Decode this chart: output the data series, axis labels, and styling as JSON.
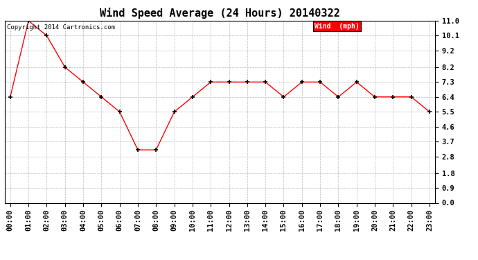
{
  "title": "Wind Speed Average (24 Hours) 20140322",
  "copyright_text": "Copyright 2014 Cartronics.com",
  "legend_label": "Wind  (mph)",
  "x_labels": [
    "00:00",
    "01:00",
    "02:00",
    "03:00",
    "04:00",
    "05:00",
    "06:00",
    "07:00",
    "08:00",
    "09:00",
    "10:00",
    "11:00",
    "12:00",
    "13:00",
    "14:00",
    "15:00",
    "16:00",
    "17:00",
    "18:00",
    "19:00",
    "20:00",
    "21:00",
    "22:00",
    "23:00"
  ],
  "wind_values": [
    6.4,
    11.0,
    10.1,
    8.2,
    7.3,
    6.4,
    5.5,
    3.2,
    3.2,
    5.5,
    6.4,
    7.3,
    7.3,
    7.3,
    7.3,
    6.4,
    7.3,
    7.3,
    6.4,
    7.3,
    6.4,
    6.4,
    6.4,
    5.5
  ],
  "y_ticks": [
    0.0,
    0.9,
    1.8,
    2.8,
    3.7,
    4.6,
    5.5,
    6.4,
    7.3,
    8.2,
    9.2,
    10.1,
    11.0
  ],
  "ylim": [
    0.0,
    11.0
  ],
  "line_color": "#ff0000",
  "marker_color": "#000000",
  "background_color": "#ffffff",
  "grid_color": "#bbbbbb",
  "title_fontsize": 11,
  "tick_fontsize": 7.5,
  "legend_bg_color": "#ff0000",
  "legend_text_color": "#ffffff",
  "copyright_fontsize": 6.5,
  "legend_fontsize": 7
}
